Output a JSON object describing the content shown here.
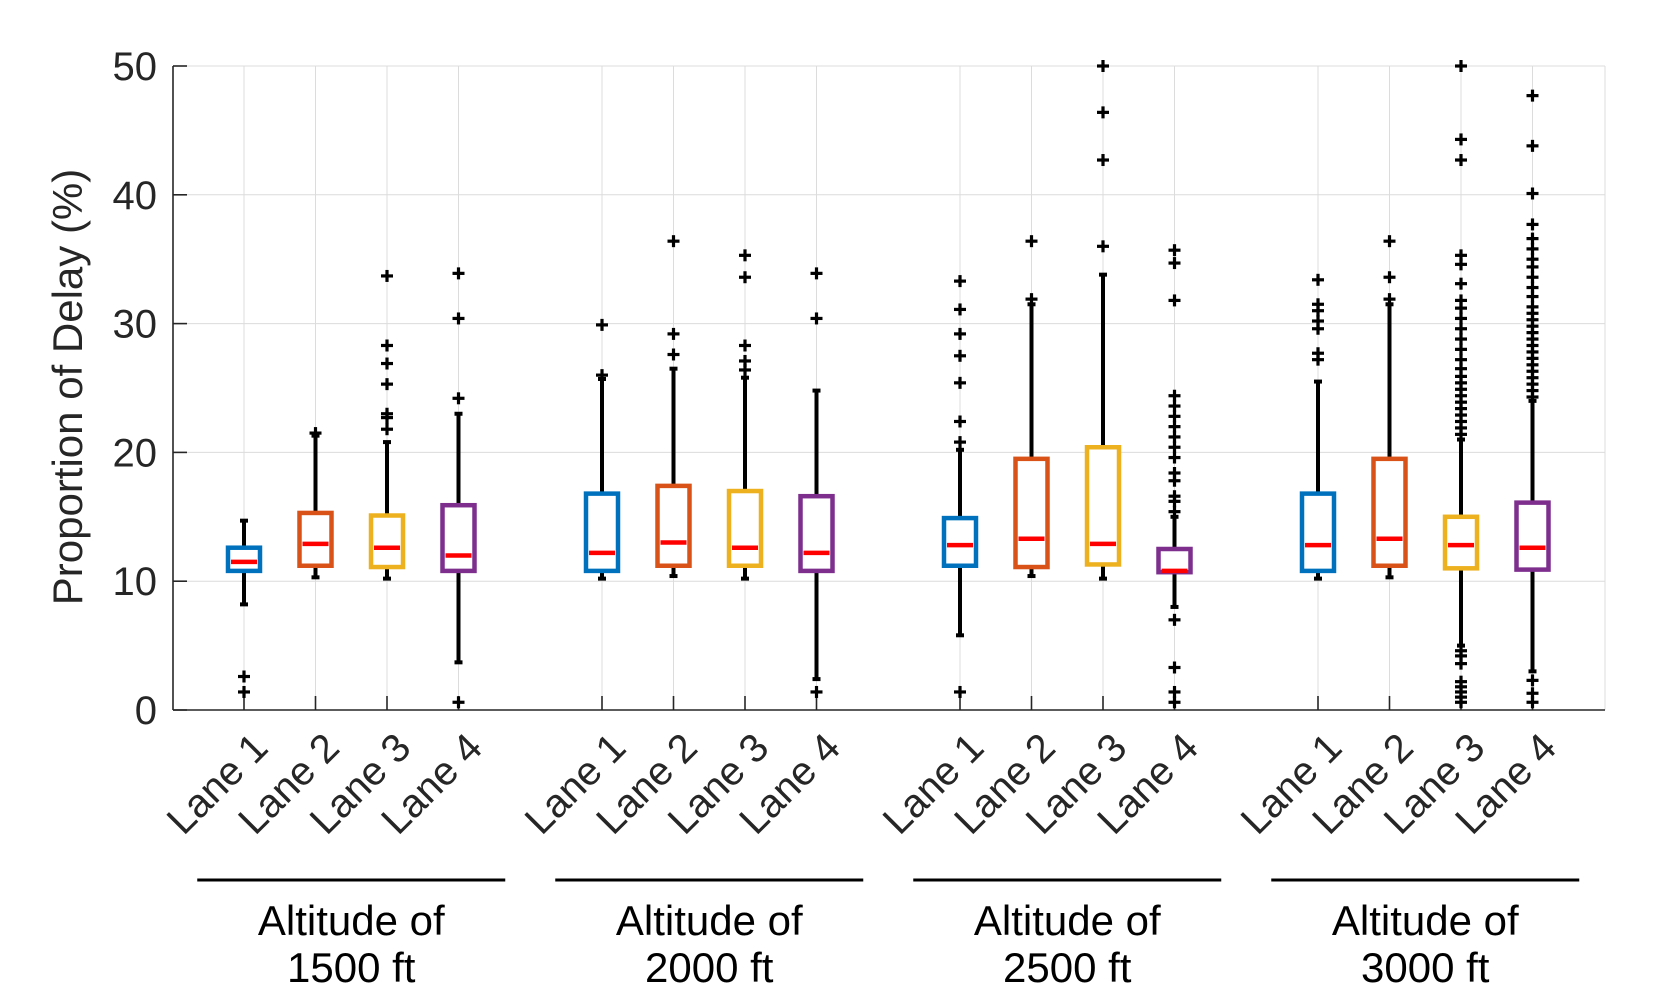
{
  "chart_data": {
    "type": "box",
    "ylabel": "Proportion of Delay (%)",
    "xlabel": "",
    "ylim": [
      0,
      50
    ],
    "yticks": [
      "0",
      "10",
      "20",
      "30",
      "40",
      "50"
    ],
    "grid": true,
    "series_colors": {
      "Lane 1": "#0072BD",
      "Lane 2": "#D95319",
      "Lane 3": "#EDB120",
      "Lane 4": "#7E2F8E"
    },
    "median_color": "#FF0000",
    "whisker_color": "#000000",
    "groups": [
      {
        "label_line1": "Altitude of",
        "label_line2": "1500 ft",
        "boxes": [
          {
            "lane": "Lane 1",
            "q1": 10.8,
            "median": 11.5,
            "q3": 12.6,
            "low": 8.2,
            "high": 14.7,
            "outliers": [
              1.4,
              2.6
            ]
          },
          {
            "lane": "Lane 2",
            "q1": 11.2,
            "median": 12.9,
            "q3": 15.3,
            "low": 10.3,
            "high": 21.3,
            "outliers": [
              21.5
            ]
          },
          {
            "lane": "Lane 3",
            "q1": 11.1,
            "median": 12.6,
            "q3": 15.1,
            "low": 10.2,
            "high": 20.8,
            "outliers": [
              21.8,
              22.7,
              23.0,
              25.3,
              26.9,
              28.3,
              33.7
            ]
          },
          {
            "lane": "Lane 4",
            "q1": 10.8,
            "median": 12.0,
            "q3": 15.9,
            "low": 3.7,
            "high": 23.0,
            "outliers": [
              0.6,
              24.2,
              30.4,
              33.9
            ]
          }
        ]
      },
      {
        "label_line1": "Altitude of",
        "label_line2": "2000 ft",
        "boxes": [
          {
            "lane": "Lane 1",
            "q1": 10.8,
            "median": 12.2,
            "q3": 16.8,
            "low": 10.2,
            "high": 25.7,
            "outliers": [
              26.0,
              29.9
            ]
          },
          {
            "lane": "Lane 2",
            "q1": 11.2,
            "median": 13.0,
            "q3": 17.4,
            "low": 10.4,
            "high": 26.5,
            "outliers": [
              27.6,
              29.2,
              36.4
            ]
          },
          {
            "lane": "Lane 3",
            "q1": 11.2,
            "median": 12.6,
            "q3": 17.0,
            "low": 10.2,
            "high": 25.8,
            "outliers": [
              26.4,
              27.1,
              28.3,
              33.6,
              35.3
            ]
          },
          {
            "lane": "Lane 4",
            "q1": 10.8,
            "median": 12.2,
            "q3": 16.6,
            "low": 2.4,
            "high": 24.8,
            "outliers": [
              1.4,
              30.4,
              33.9
            ]
          }
        ]
      },
      {
        "label_line1": "Altitude of",
        "label_line2": "2500 ft",
        "boxes": [
          {
            "lane": "Lane 1",
            "q1": 11.2,
            "median": 12.8,
            "q3": 14.9,
            "low": 5.8,
            "high": 20.2,
            "outliers": [
              1.4,
              20.8,
              22.4,
              25.4,
              27.5,
              29.2,
              31.1,
              33.3
            ]
          },
          {
            "lane": "Lane 2",
            "q1": 11.1,
            "median": 13.3,
            "q3": 19.5,
            "low": 10.4,
            "high": 31.5,
            "outliers": [
              31.9,
              36.4
            ]
          },
          {
            "lane": "Lane 3",
            "q1": 11.3,
            "median": 12.9,
            "q3": 20.4,
            "low": 10.2,
            "high": 33.8,
            "outliers": [
              36.0,
              42.7,
              46.4,
              50.0
            ]
          },
          {
            "lane": "Lane 4",
            "q1": 10.7,
            "median": 10.8,
            "q3": 12.5,
            "low": 8.0,
            "high": 15.0,
            "outliers": [
              0.6,
              1.4,
              3.3,
              7.0,
              15.4,
              16.2,
              16.6,
              17.8,
              18.4,
              19.6,
              20.4,
              21.2,
              22.0,
              22.8,
              23.6,
              24.4,
              31.8,
              34.7,
              35.7
            ]
          }
        ]
      },
      {
        "label_line1": "Altitude of",
        "label_line2": "3000 ft",
        "boxes": [
          {
            "lane": "Lane 1",
            "q1": 10.8,
            "median": 12.8,
            "q3": 16.8,
            "low": 10.2,
            "high": 25.5,
            "outliers": [
              27.2,
              27.7,
              29.6,
              30.2,
              31.0,
              31.5,
              33.4
            ]
          },
          {
            "lane": "Lane 2",
            "q1": 11.2,
            "median": 13.3,
            "q3": 19.5,
            "low": 10.3,
            "high": 31.5,
            "outliers": [
              31.9,
              33.6,
              36.4
            ]
          },
          {
            "lane": "Lane 3",
            "q1": 11.0,
            "median": 12.8,
            "q3": 15.0,
            "low": 5.0,
            "high": 21.0,
            "outliers": [
              0.6,
              1.0,
              1.4,
              1.8,
              2.2,
              3.6,
              4.2,
              4.6,
              21.4,
              21.9,
              22.4,
              22.9,
              23.4,
              23.9,
              24.4,
              24.9,
              25.4,
              25.9,
              26.5,
              27.2,
              28.0,
              28.8,
              29.6,
              30.4,
              31.2,
              31.8,
              33.1,
              34.6,
              35.3,
              42.7,
              44.3,
              50.0
            ]
          },
          {
            "lane": "Lane 4",
            "q1": 10.9,
            "median": 12.6,
            "q3": 16.1,
            "low": 3.0,
            "high": 24.0,
            "outliers": [
              0.6,
              1.3,
              2.3,
              24.3,
              24.8,
              25.3,
              25.8,
              26.3,
              26.8,
              27.3,
              27.8,
              28.3,
              28.8,
              29.3,
              29.8,
              30.3,
              30.8,
              31.3,
              32.1,
              32.8,
              33.6,
              34.4,
              35.0,
              35.8,
              36.6,
              37.7,
              40.1,
              43.8,
              47.7
            ]
          }
        ]
      }
    ]
  }
}
